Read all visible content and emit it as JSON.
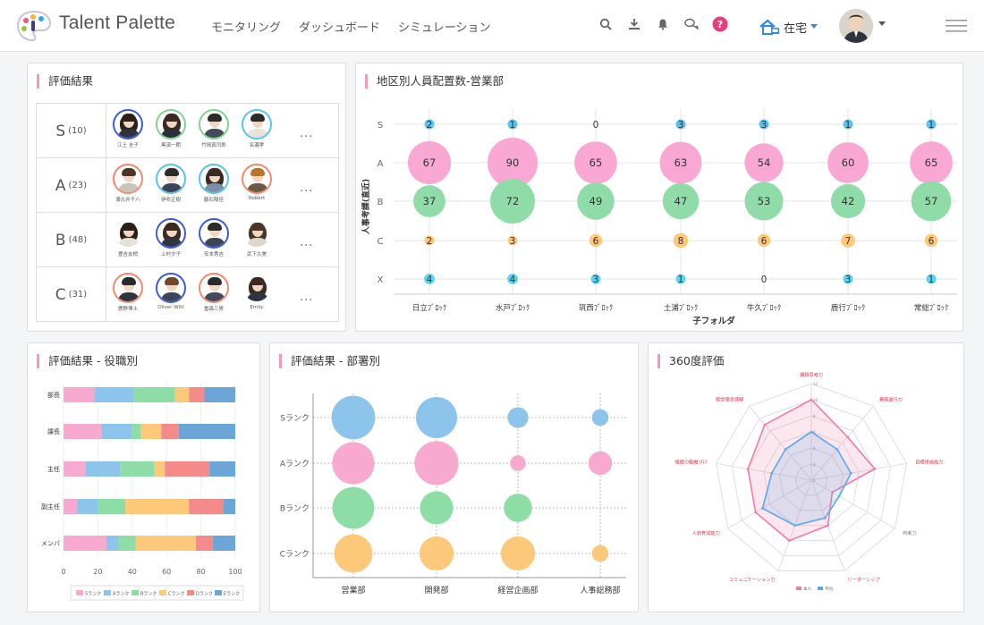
{
  "header": {
    "logo_text": "Talent Palette",
    "nav": [
      "モニタリング",
      "ダッシュボード",
      "シミュレーション"
    ],
    "icons": [
      "search-icon",
      "download-icon",
      "bell-icon",
      "chat-icon",
      "help-icon"
    ],
    "work_status": "在宅"
  },
  "eval_results": {
    "title": "評価結果",
    "more": "...",
    "rows": [
      {
        "grade": "S",
        "count": "(10)",
        "people": [
          {
            "name": "江土 圭子",
            "ring": "#3d5bd6",
            "hair": "#2d2018",
            "body": "#2f3440",
            "long": true
          },
          {
            "name": "黒須一朗",
            "ring": "#7ed58e",
            "hair": "#3a2a22",
            "body": "#2b2f3a",
            "long": true
          },
          {
            "name": "竹岡真司郎",
            "ring": "#7ed58e",
            "hair": "#2b2b2b",
            "body": "#434a58",
            "long": false
          },
          {
            "name": "名瀬孝",
            "ring": "#59c2ef",
            "hair": "#2b2b2b",
            "body": "#e8e3da",
            "long": false
          }
        ]
      },
      {
        "grade": "A",
        "count": "(23)",
        "people": [
          {
            "name": "湊久井千八",
            "ring": "#f28a70",
            "hair": "#4a3526",
            "body": "#c9c4bb",
            "long": false
          },
          {
            "name": "伊吹正樹",
            "ring": "#59c2ef",
            "hair": "#2b2b2b",
            "body": "#3b4556",
            "long": false
          },
          {
            "name": "鶴石陽佳",
            "ring": "#59c2ef",
            "hair": "#3a2a22",
            "body": "#7a8fa6",
            "long": true
          },
          {
            "name": "Robert",
            "ring": "#f28a70",
            "hair": "#b9742e",
            "body": "#6b5847",
            "long": false
          }
        ]
      },
      {
        "grade": "B",
        "count": "(48)",
        "people": [
          {
            "name": "豊吉友梢",
            "ring": "#ffffff",
            "hair": "#2d2018",
            "body": "#e6e1d8",
            "long": true
          },
          {
            "name": "上村夕子",
            "ring": "#3d5bd6",
            "hair": "#3a2a22",
            "body": "#2f3440",
            "long": true
          },
          {
            "name": "安本秀吉",
            "ring": "#3d5bd6",
            "hair": "#2b2b2b",
            "body": "#3b4556",
            "long": false
          },
          {
            "name": "武下久美",
            "ring": "#ffffff",
            "hair": "#4a3526",
            "body": "#dcd6cc",
            "long": true
          }
        ]
      },
      {
        "grade": "C",
        "count": "(31)",
        "people": [
          {
            "name": "鹿野博士",
            "ring": "#f28a70",
            "hair": "#2b2b2b",
            "body": "#2f3440",
            "long": false
          },
          {
            "name": "Oliver Willi",
            "ring": "#3d5bd6",
            "hair": "#6b4a2e",
            "body": "#3b4556",
            "long": false
          },
          {
            "name": "重森三男",
            "ring": "#f28a70",
            "hair": "#2b2b2b",
            "body": "#43495a",
            "long": false
          },
          {
            "name": "Emily",
            "ring": "#ffffff",
            "hair": "#3a2a22",
            "body": "#2f3440",
            "long": true
          }
        ]
      }
    ]
  },
  "area_chart": {
    "title": "地区別人員配置数-営業部",
    "chart_data": {
      "type": "scatter",
      "subtype": "bubble",
      "title": "地区別人員配置数-営業部",
      "xlabel": "子フォルダ",
      "ylabel": "人事考課(直近)",
      "categories": [
        "日立ﾌﾞﾛｯｸ",
        "水戸ﾌﾞﾛｯｸ",
        "筑西ﾌﾞﾛｯｸ",
        "土浦ﾌﾞﾛｯｸ",
        "牛久ﾌﾞﾛｯｸ",
        "鹿行ﾌﾞﾛｯｸ",
        "常総ﾌﾞﾛｯｸ"
      ],
      "y_categories": [
        "S",
        "A",
        "B",
        "C",
        "X"
      ],
      "series": [
        {
          "grade": "S",
          "color": "#59c2ef",
          "values": [
            2,
            1,
            0,
            3,
            3,
            1,
            1
          ]
        },
        {
          "grade": "A",
          "color": "#f9a8d4",
          "values": [
            67,
            90,
            65,
            63,
            54,
            60,
            65
          ]
        },
        {
          "grade": "B",
          "color": "#8fdca8",
          "values": [
            37,
            72,
            49,
            47,
            53,
            42,
            57
          ]
        },
        {
          "grade": "C",
          "color": "#fdc878",
          "values": [
            2,
            3,
            6,
            8,
            6,
            7,
            6
          ]
        },
        {
          "grade": "X",
          "color": "#59d3ef",
          "values": [
            4,
            4,
            3,
            1,
            0,
            3,
            1
          ]
        }
      ],
      "grid": true
    }
  },
  "position_chart": {
    "title": "評価結果 - 役職別",
    "chart_data": {
      "type": "bar",
      "stacked": true,
      "orientation": "horizontal",
      "categories": [
        "部長",
        "課長",
        "主任",
        "副主任",
        "メンバ"
      ],
      "xticks": [
        "0",
        "20",
        "40",
        "60",
        "80",
        "100"
      ],
      "xlim": [
        0,
        100
      ],
      "series": [
        {
          "name": "Sランク",
          "color": "#f7a9d0",
          "values": [
            18,
            22,
            13,
            8,
            25
          ]
        },
        {
          "name": "Aランク",
          "color": "#8cc4ec",
          "values": [
            23,
            18,
            20,
            12,
            7
          ]
        },
        {
          "name": "Bランク",
          "color": "#8edca6",
          "values": [
            24,
            5,
            20,
            16,
            10
          ]
        },
        {
          "name": "Cランク",
          "color": "#fcc97a",
          "values": [
            8,
            12,
            6,
            37,
            35
          ]
        },
        {
          "name": "Dランク",
          "color": "#f48a8a",
          "values": [
            9,
            10,
            26,
            20,
            10
          ]
        },
        {
          "name": "Eランク",
          "color": "#6ca6d9",
          "values": [
            18,
            33,
            15,
            7,
            13
          ]
        }
      ],
      "legend": "bottom",
      "grid": true
    }
  },
  "dept_chart": {
    "title": "評価結果 - 部署別",
    "chart_data": {
      "type": "scatter",
      "subtype": "bubble",
      "categories": [
        "営業部",
        "開発部",
        "経営企画部",
        "人事総務部"
      ],
      "y_categories": [
        "Sランク",
        "Aランク",
        "Bランク",
        "Cランク"
      ],
      "series": [
        {
          "grade": "Sランク",
          "color": "#8cc4ec",
          "values": [
            62,
            55,
            14,
            9
          ]
        },
        {
          "grade": "Aランク",
          "color": "#f7a9d0",
          "values": [
            58,
            63,
            8,
            18
          ]
        },
        {
          "grade": "Bランク",
          "color": "#8edca6",
          "values": [
            57,
            36,
            26,
            0
          ]
        },
        {
          "grade": "Cランク",
          "color": "#fcc97a",
          "values": [
            48,
            38,
            38,
            9
          ]
        }
      ],
      "grid": true
    }
  },
  "radar_chart": {
    "title": "360度評価",
    "chart_data": {
      "type": "radar",
      "axes": [
        "課題思考力",
        "業務遂行力",
        "目標達成能力",
        "判断力",
        "リーダーシップ",
        "コミュニケーション力",
        "人材育成能力",
        "組織の動機づけ",
        "経営理念理解"
      ],
      "range": [
        0,
        12
      ],
      "ticks": [
        "0",
        "2",
        "4",
        "6",
        "8",
        "10",
        "12"
      ],
      "series": [
        {
          "name": "本人",
          "color": "#f07aa8",
          "values": [
            10,
            7,
            8,
            3,
            6,
            8,
            8,
            8,
            9
          ]
        },
        {
          "name": "平均",
          "color": "#5aa8e6",
          "values": [
            6,
            5,
            5,
            4,
            5,
            6,
            7,
            5,
            5
          ]
        }
      ],
      "legend": "bottom"
    }
  }
}
